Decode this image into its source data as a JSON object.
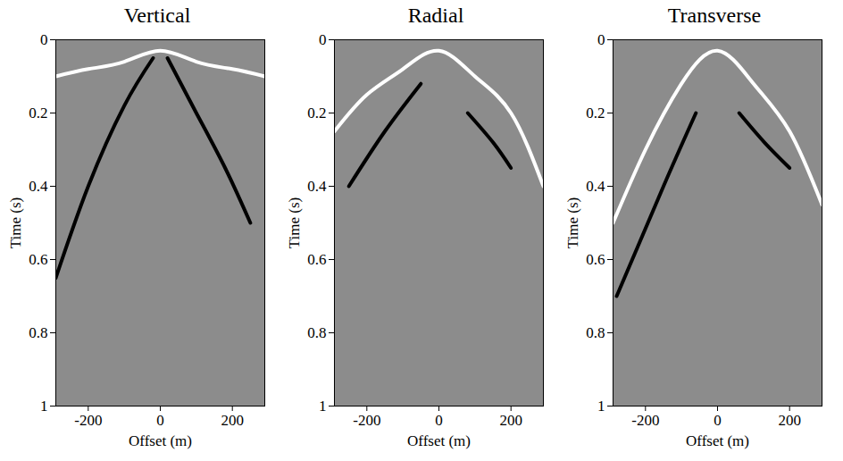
{
  "chart_data": [
    {
      "type": "line",
      "title": "Vertical",
      "xlabel": "Offset (m)",
      "ylabel": "Time (s)",
      "xlim": [
        -290,
        290
      ],
      "ylim": [
        0,
        1
      ],
      "xticks": [
        -200,
        0,
        200
      ],
      "yticks": [
        0,
        0.2,
        0.4,
        0.6,
        0.8,
        1
      ],
      "grid": false,
      "series": [
        {
          "color": "#ffffff",
          "x": [
            -290,
            -200,
            -100,
            0,
            100,
            200,
            290
          ],
          "values": [
            0.1,
            0.08,
            0.06,
            0.03,
            0.06,
            0.08,
            0.1
          ]
        },
        {
          "color": "#000000",
          "x": [
            -20,
            -100,
            -200,
            -290
          ],
          "values": [
            0.05,
            0.18,
            0.4,
            0.65
          ]
        },
        {
          "color": "#000000",
          "x": [
            20,
            100,
            180,
            250
          ],
          "values": [
            0.05,
            0.2,
            0.35,
            0.5
          ]
        }
      ]
    },
    {
      "type": "line",
      "title": "Radial",
      "xlabel": "Offset (m)",
      "ylabel": "Time (s)",
      "xlim": [
        -290,
        290
      ],
      "ylim": [
        0,
        1
      ],
      "xticks": [
        -200,
        0,
        200
      ],
      "yticks": [
        0,
        0.2,
        0.4,
        0.6,
        0.8,
        1
      ],
      "grid": false,
      "series": [
        {
          "color": "#ffffff",
          "x": [
            -290,
            -200,
            -100,
            0,
            100,
            200,
            290
          ],
          "values": [
            0.25,
            0.15,
            0.08,
            0.03,
            0.1,
            0.2,
            0.4
          ]
        },
        {
          "color": "#000000",
          "x": [
            80,
            150,
            200
          ],
          "values": [
            0.2,
            0.28,
            0.35
          ]
        },
        {
          "color": "#000000",
          "x": [
            -50,
            -150,
            -250
          ],
          "values": [
            0.12,
            0.25,
            0.4
          ]
        }
      ]
    },
    {
      "type": "line",
      "title": "Transverse",
      "xlabel": "Offset (m)",
      "ylabel": "Time (s)",
      "xlim": [
        -290,
        290
      ],
      "ylim": [
        0,
        1
      ],
      "xticks": [
        -200,
        0,
        200
      ],
      "yticks": [
        0,
        0.2,
        0.4,
        0.6,
        0.8,
        1
      ],
      "grid": false,
      "series": [
        {
          "color": "#ffffff",
          "x": [
            -290,
            -200,
            -100,
            0,
            100,
            200,
            290
          ],
          "values": [
            0.5,
            0.3,
            0.12,
            0.03,
            0.12,
            0.25,
            0.45
          ]
        },
        {
          "color": "#000000",
          "x": [
            60,
            130,
            200
          ],
          "values": [
            0.2,
            0.28,
            0.35
          ]
        },
        {
          "color": "#000000",
          "x": [
            -60,
            -150,
            -280
          ],
          "values": [
            0.2,
            0.4,
            0.7
          ]
        }
      ]
    }
  ]
}
